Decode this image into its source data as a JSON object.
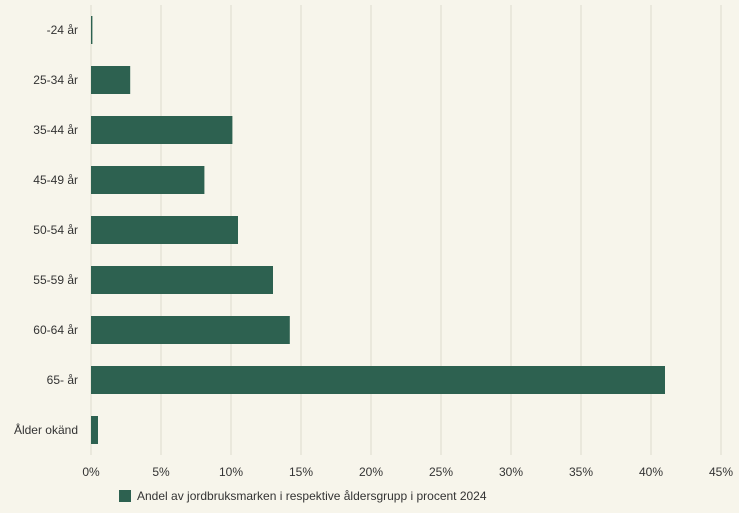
{
  "chart_data": {
    "type": "bar",
    "orientation": "horizontal",
    "categories": [
      "-24 år",
      "25-34 år",
      "35-44 år",
      "45-49 år",
      "50-54 år",
      "55-59 år",
      "60-64 år",
      "65- år",
      "Ålder okänd"
    ],
    "series": [
      {
        "name": "Andel av jordbruksmarken i respektive åldersgrupp i procent 2024",
        "color": "#2d6150",
        "values": [
          0.1,
          2.8,
          10.1,
          8.1,
          10.5,
          13.0,
          14.2,
          41.0,
          0.5
        ]
      }
    ],
    "xlim": [
      0,
      45
    ],
    "xticks": [
      0,
      5,
      10,
      15,
      20,
      25,
      30,
      35,
      40,
      45
    ],
    "xtick_labels": [
      "0%",
      "5%",
      "10%",
      "15%",
      "20%",
      "25%",
      "30%",
      "35%",
      "40%",
      "45%"
    ],
    "grid": true,
    "legend_position": "bottom-left",
    "background": "#f7f5eb",
    "grid_color": "#dcdacc"
  }
}
